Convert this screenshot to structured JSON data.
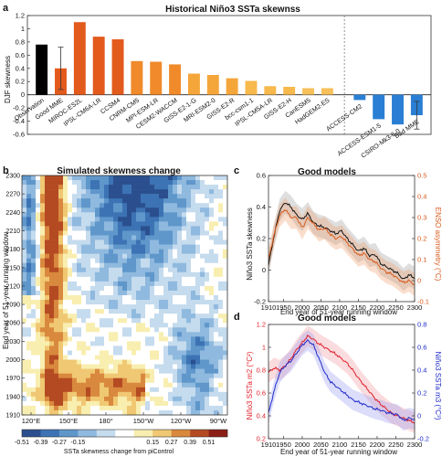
{
  "panels": {
    "a": "a",
    "b": "b",
    "c": "c",
    "d": "d"
  },
  "chart_data": [
    {
      "panel": "a",
      "type": "bar",
      "title": "Historical Niño3 SSTa skewnss",
      "ylabel": "DJF skewness",
      "ylim": [
        -0.6,
        1.2
      ],
      "yticks": [
        -0.6,
        -0.4,
        -0.2,
        0,
        0.2,
        0.4,
        0.6,
        0.8,
        1,
        1.2
      ],
      "ytick_labels": [
        "-0.6",
        "-0.4",
        "-0.2",
        "0",
        "0.2",
        "0.4",
        "0.6",
        "0.8",
        "1",
        "1.2"
      ],
      "categories": [
        "Observation",
        "Good MME",
        "MIROC-ES2L",
        "IPSL-CM6A-LR",
        "CCSM4",
        "CNRM-CM5",
        "MPI-ESM-LR",
        "CESM2-WACCM",
        "GISS-E2-1-G",
        "MRI-ESM2-0",
        "GISS-E2-R",
        "bcc-csm1-1",
        "IPSL-CM5A-LR",
        "GISS-E2-H",
        "CanESM5",
        "HadGEM2-ES",
        "ACCESS-CM2",
        "ACCESS-ESM1-5",
        "CSIRO-Mk3-6-0",
        "Bad MME"
      ],
      "values": [
        0.76,
        0.4,
        1.1,
        0.88,
        0.84,
        0.51,
        0.5,
        0.46,
        0.32,
        0.3,
        0.25,
        0.21,
        0.13,
        0.12,
        0.1,
        0.1,
        -0.08,
        -0.37,
        -0.45,
        -0.31
      ],
      "errors": [
        null,
        0.32,
        null,
        null,
        null,
        null,
        null,
        null,
        null,
        null,
        null,
        null,
        null,
        null,
        null,
        null,
        null,
        null,
        null,
        0.21
      ],
      "bar_colors": [
        "#000000",
        "#e35a1d",
        "#e35a1d",
        "#e35a1d",
        "#e35a1d",
        "#f08a2a",
        "#f08a2a",
        "#f08a2a",
        "#f5a63a",
        "#f5a63a",
        "#f5a63a",
        "#f7b84c",
        "#f7b84c",
        "#f7b84c",
        "#f7c05a",
        "#f7c05a",
        "#2a7fd4",
        "#2a7fd4",
        "#2a7fd4",
        "#2a7fd4"
      ],
      "divider_after": "HadGEM2-ES"
    },
    {
      "panel": "b",
      "type": "heatmap",
      "title": "Simulated skewness change",
      "ylabel": "End year of 51-year running window",
      "xlabel": "",
      "xticks": [
        "120°E",
        "150°E",
        "180°",
        "150°W",
        "120°W",
        "90°W"
      ],
      "yticks": [
        1910,
        1940,
        1970,
        2000,
        2030,
        2060,
        2090,
        2120,
        2150,
        2180,
        2210,
        2240,
        2270,
        2300
      ],
      "ylim": [
        1910,
        2300
      ],
      "colorbar_label": "SSTa skewness change from piControl",
      "colorbar_ticks": [
        "-0.51",
        "-0.39",
        "-0.27",
        "-0.15",
        "0.15",
        "0.27",
        "0.39",
        "0.51"
      ],
      "colorbar_colors": [
        "#2b4f8e",
        "#3c73b4",
        "#5f97cb",
        "#8fb9de",
        "#c5dbee",
        "#ffffff",
        "#f8eeb0",
        "#f0c873",
        "#d9893e",
        "#b44a22",
        "#8a1f16"
      ]
    },
    {
      "panel": "c",
      "type": "line",
      "title": "Good models",
      "xlabel": "End year of 51-year running window",
      "ylabel": "Niño3 SSTa skewness",
      "ylabel_right": "ENSO asymmetry (°C)",
      "xlim": [
        1910,
        2300
      ],
      "xticks": [
        1910,
        1950,
        2000,
        2050,
        2100,
        2150,
        2200,
        2250,
        2300
      ],
      "ylim": [
        -0.2,
        0.6
      ],
      "yticks": [
        -0.2,
        0,
        0.2,
        0.4,
        0.6
      ],
      "ylim_right": [
        -0.1,
        0.5
      ],
      "yticks_right": [
        -0.1,
        0,
        0.1,
        0.2,
        0.3,
        0.4,
        0.5
      ],
      "series": [
        {
          "axis": "left",
          "color": "#111111",
          "x": [
            1910,
            1925,
            1940,
            1955,
            1970,
            1985,
            2000,
            2015,
            2030,
            2045,
            2060,
            2075,
            2090,
            2105,
            2120,
            2135,
            2150,
            2165,
            2180,
            2195,
            2210,
            2225,
            2240,
            2255,
            2270,
            2285,
            2300
          ],
          "y": [
            0.03,
            0.22,
            0.38,
            0.43,
            0.4,
            0.35,
            0.32,
            0.36,
            0.3,
            0.28,
            0.27,
            0.25,
            0.23,
            0.25,
            0.2,
            0.16,
            0.12,
            0.14,
            0.09,
            0.1,
            0.04,
            0.02,
            0.0,
            -0.02,
            -0.06,
            -0.03,
            -0.05
          ]
        },
        {
          "axis": "right",
          "color": "#d85a1c",
          "x": [
            1910,
            1925,
            1940,
            1955,
            1970,
            1985,
            2000,
            2015,
            2030,
            2045,
            2060,
            2075,
            2090,
            2105,
            2120,
            2135,
            2150,
            2165,
            2180,
            2195,
            2210,
            2225,
            2240,
            2255,
            2270,
            2285,
            2300
          ],
          "y": [
            0.1,
            0.22,
            0.31,
            0.34,
            0.3,
            0.3,
            0.25,
            0.3,
            0.27,
            0.24,
            0.25,
            0.22,
            0.2,
            0.21,
            0.18,
            0.15,
            0.12,
            0.13,
            0.1,
            0.09,
            0.06,
            0.04,
            0.03,
            0.01,
            -0.01,
            0.0,
            -0.02
          ]
        }
      ]
    },
    {
      "panel": "d",
      "type": "line",
      "title": "Good models",
      "xlabel": "End year of 51-year running window",
      "ylabel": "Niño3 SSTa m2 (°C²)",
      "ylabel_right": "Niño3 SSTa m3 (°C³)",
      "xlim": [
        1910,
        2300
      ],
      "xticks": [
        1910,
        1950,
        2000,
        2050,
        2100,
        2150,
        2200,
        2250,
        2300
      ],
      "ylim": [
        0.2,
        1.2
      ],
      "yticks": [
        0.2,
        0.4,
        0.6,
        0.8,
        1,
        1.2
      ],
      "ylim_right": [
        -0.2,
        0.8
      ],
      "yticks_right": [
        -0.2,
        0,
        0.2,
        0.4,
        0.6,
        0.8
      ],
      "series": [
        {
          "axis": "left",
          "color": "#e0202a",
          "x": [
            1910,
            1925,
            1940,
            1955,
            1970,
            1985,
            2000,
            2015,
            2030,
            2045,
            2060,
            2075,
            2090,
            2105,
            2120,
            2135,
            2150,
            2165,
            2180,
            2195,
            2210,
            2225,
            2240,
            2255,
            2270,
            2285,
            2300
          ],
          "y": [
            0.78,
            0.82,
            0.8,
            0.84,
            0.9,
            0.98,
            1.04,
            1.1,
            1.07,
            1.03,
            1.0,
            0.97,
            0.94,
            0.9,
            0.86,
            0.8,
            0.73,
            0.67,
            0.61,
            0.55,
            0.5,
            0.46,
            0.42,
            0.4,
            0.38,
            0.36,
            0.34
          ]
        },
        {
          "axis": "right",
          "color": "#1f2bc8",
          "x": [
            1910,
            1925,
            1940,
            1955,
            1970,
            1985,
            2000,
            2015,
            2030,
            2045,
            2060,
            2075,
            2090,
            2105,
            2120,
            2135,
            2150,
            2165,
            2180,
            2195,
            2210,
            2225,
            2240,
            2255,
            2270,
            2285,
            2300
          ],
          "y": [
            0.02,
            0.22,
            0.38,
            0.44,
            0.48,
            0.55,
            0.62,
            0.66,
            0.62,
            0.5,
            0.38,
            0.3,
            0.26,
            0.22,
            0.18,
            0.14,
            0.12,
            0.1,
            0.08,
            0.06,
            0.05,
            0.03,
            0.02,
            0.01,
            -0.04,
            -0.02,
            -0.03
          ]
        }
      ]
    }
  ]
}
